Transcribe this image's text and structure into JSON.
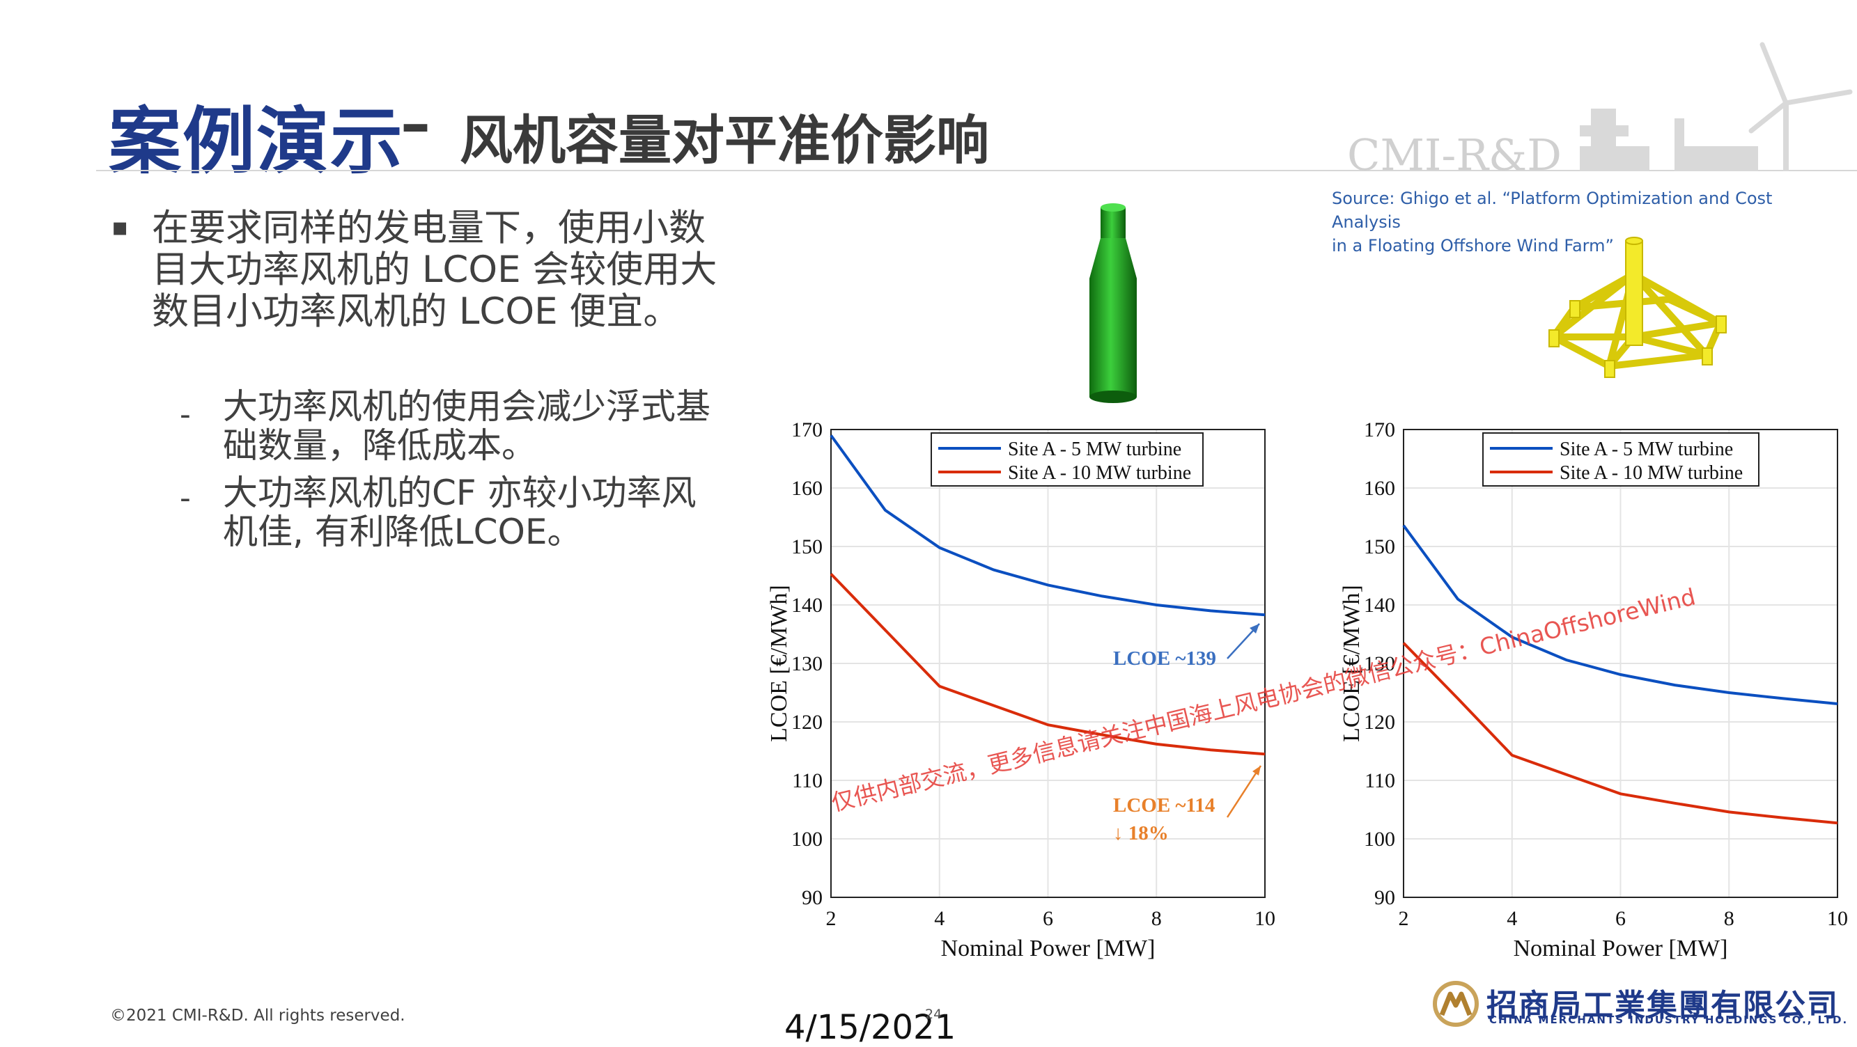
{
  "header": {
    "title_main": "案例演示",
    "title_dash": "–",
    "title_sub": "风机容量对平准价影响",
    "logo_text": "CMI-R&D"
  },
  "source": {
    "line1": "Source: Ghigo et al. “Platform Optimization and Cost Analysis",
    "line2": "in a Floating Offshore Wind Farm”"
  },
  "bullets": {
    "b1": "在要求同样的发电量下，使用小数目大功率风机的 LCOE 会较使用大数目小功率风机的 LCOE 便宜。",
    "b2": "大功率风机的使用会减少浮式基础数量，降低成本。",
    "b3": "大功率风机的CF 亦较小功率风机佳, 有利降低LCOE。",
    "marker_l1": "▪",
    "marker_l2": "-"
  },
  "footer": {
    "copyright": "©2021 CMI-R&D. All rights reserved.",
    "date": "4/15/2021",
    "page": "24",
    "company_cn": "招商局工業集團有限公司",
    "company_en": "CHINA MERCHANTS INDUSTRY HOLDINGS CO., LTD."
  },
  "watermark": "仅供内部交流，更多信息请关注中国海上风电协会的微信公众号：ChinaOffshoreWind",
  "colors": {
    "title_blue": "#1f3a8a",
    "series_5mw": "#0b4fc0",
    "series_10mw": "#d92c0a",
    "annot_blue": "#3a6fc0",
    "annot_orange": "#e8802a",
    "spar_green": "#2a9a2a",
    "semi_yellow": "#ece21a"
  },
  "icons": {
    "spar": "spar-floater-icon",
    "semisub": "semisub-floater-icon",
    "turbine": "wind-turbine-logo-icon",
    "company": "cmi-logo-icon"
  },
  "chart_data": [
    {
      "type": "line",
      "xlabel": "Nominal Power [MW]",
      "ylabel": "LCOE [€/MWh]",
      "xlim": [
        2,
        10
      ],
      "ylim": [
        90,
        170
      ],
      "xticks": [
        2,
        4,
        6,
        8,
        10
      ],
      "yticks": [
        90,
        100,
        110,
        120,
        130,
        140,
        150,
        160,
        170
      ],
      "grid": true,
      "legend_position": "top-right",
      "x": [
        2,
        3,
        4,
        5,
        6,
        7,
        8,
        9,
        10
      ],
      "series": [
        {
          "name": "Site A - 5 MW turbine",
          "values": [
            169,
            156.2,
            149.8,
            146,
            143.4,
            141.5,
            140,
            139,
            138.3
          ]
        },
        {
          "name": "Site A - 10 MW turbine",
          "values": [
            145.3,
            135.7,
            126.1,
            122.8,
            119.5,
            117.8,
            116.2,
            115.2,
            114.5
          ]
        }
      ],
      "annotations": [
        {
          "text": "LCOE ~139"
        },
        {
          "text": "LCOE ~114"
        },
        {
          "text": "↓ 18%"
        }
      ]
    },
    {
      "type": "line",
      "xlabel": "Nominal Power [MW]",
      "ylabel": "LCOE [€/MWh]",
      "xlim": [
        2,
        10
      ],
      "ylim": [
        90,
        170
      ],
      "xticks": [
        2,
        4,
        6,
        8,
        10
      ],
      "yticks": [
        90,
        100,
        110,
        120,
        130,
        140,
        150,
        160,
        170
      ],
      "grid": true,
      "legend_position": "top-right",
      "x": [
        2,
        3,
        4,
        5,
        6,
        7,
        8,
        9,
        10
      ],
      "series": [
        {
          "name": "Site A - 5 MW turbine",
          "values": [
            153.6,
            141,
            134.5,
            130.6,
            128.1,
            126.3,
            125,
            124,
            123.1
          ]
        },
        {
          "name": "Site A - 10 MW turbine",
          "values": [
            133.5,
            124,
            114.3,
            111,
            107.7,
            106.1,
            104.6,
            103.6,
            102.7
          ]
        }
      ],
      "annotations": []
    }
  ]
}
